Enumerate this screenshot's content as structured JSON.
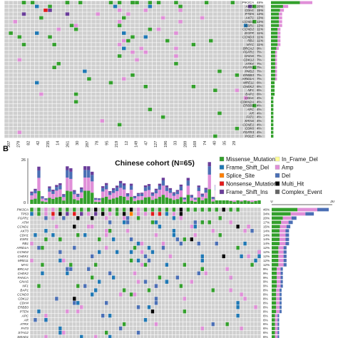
{
  "chart_data": [
    {
      "type": "heatmap",
      "panel": "A",
      "genes": [
        "PIK3CA",
        "AKT3",
        "CDH1",
        "PTEN",
        "AKT1",
        "CCND1",
        "ESR1",
        "CCND2",
        "EGFR",
        "CCND3",
        "RB1",
        "MYC",
        "BRCA2",
        "FGFR1",
        "GNAS",
        "CDK12",
        "ATRX",
        "FGFR4",
        "PMS2",
        "ERBB3",
        "ARID1A",
        "MRE11",
        "CHEK2",
        "NF1",
        "BAP1",
        "CDH1",
        "CDKN2A",
        "ERBB3",
        "APC",
        "AR",
        "FAT1",
        "KRAS",
        "CCNE1",
        "CDK6",
        "FGFR3",
        "POLE"
      ],
      "gene_pct": [
        "48%",
        "20%",
        "15%",
        "13%",
        "13%",
        "13%",
        "13%",
        "11%",
        "11%",
        "11%",
        "11%",
        "11%",
        "9%",
        "7%",
        "7%",
        "7%",
        "7%",
        "7%",
        "7%",
        "7%",
        "7%",
        "6%",
        "6%",
        "6%",
        "6%",
        "4%",
        "4%",
        "4%",
        "4%",
        "4%",
        "4%",
        "4%",
        "4%",
        "4%",
        "4%",
        "4%"
      ],
      "sample_ids": [
        "207",
        "279",
        "82",
        "42",
        "235",
        "14",
        "261",
        "30",
        "287",
        "78",
        "95",
        "219",
        "12",
        "149",
        "47",
        "127",
        "196",
        "33",
        "289",
        "169",
        "74",
        "40",
        "35",
        "29"
      ]
    },
    {
      "type": "heatmap",
      "panel": "B",
      "title": "Chinese cohort (N=65)",
      "y_max": 26,
      "side_axis": [
        0,
        30
      ],
      "genes": [
        "PIK3CA",
        "TP53",
        "FGFR1",
        "ATM",
        "CCND1",
        "AKT3",
        "CDH1",
        "ESR1",
        "RB1",
        "ARID1A",
        "CCND2",
        "CHEK1",
        "MRE11",
        "MYC",
        "BRCA2",
        "CHEK2",
        "FANCA",
        "GNAS",
        "NF1",
        "BAP1",
        "CCND3",
        "CDK12",
        "CDH4",
        "ERBB3",
        "PTEN",
        "APC",
        "AR",
        "ATRX",
        "FAT3",
        "STAG2",
        "SMAD1"
      ],
      "gene_pct": [
        "46%",
        "34%",
        "20%",
        "17%",
        "15%",
        "14%",
        "14%",
        "14%",
        "14%",
        "12%",
        "12%",
        "12%",
        "12%",
        "12%",
        "9%",
        "9%",
        "9%",
        "9%",
        "9%",
        "8%",
        "8%",
        "8%",
        "8%",
        "8%",
        "8%",
        "6%",
        "6%",
        "6%",
        "6%",
        "6%",
        "6%"
      ],
      "legend": [
        "Missense_Mutation",
        "In_Frame_Del",
        "Frame_Shift_Del",
        "Amp",
        "Splice_Site",
        "Del",
        "Nonsense_Mutation",
        "Multi_Hit",
        "Frame_Shift_Ins",
        "Complex_Event"
      ]
    }
  ],
  "colors": {
    "missense": "#33a02c",
    "in_frame_del": "#ffff99",
    "frame_shift_del": "#1f78b4",
    "amp": "#e08fd8",
    "splice_site": "#ff7f00",
    "del": "#4b6fb5",
    "nonsense": "#e31a1c",
    "multi_hit": "#000000",
    "frame_shift_ins": "#6a3d9a",
    "complex_event": "#666666",
    "cell_bg": "#cfcfcf"
  },
  "labels": {
    "panel_a": "",
    "panel_b": "B"
  }
}
